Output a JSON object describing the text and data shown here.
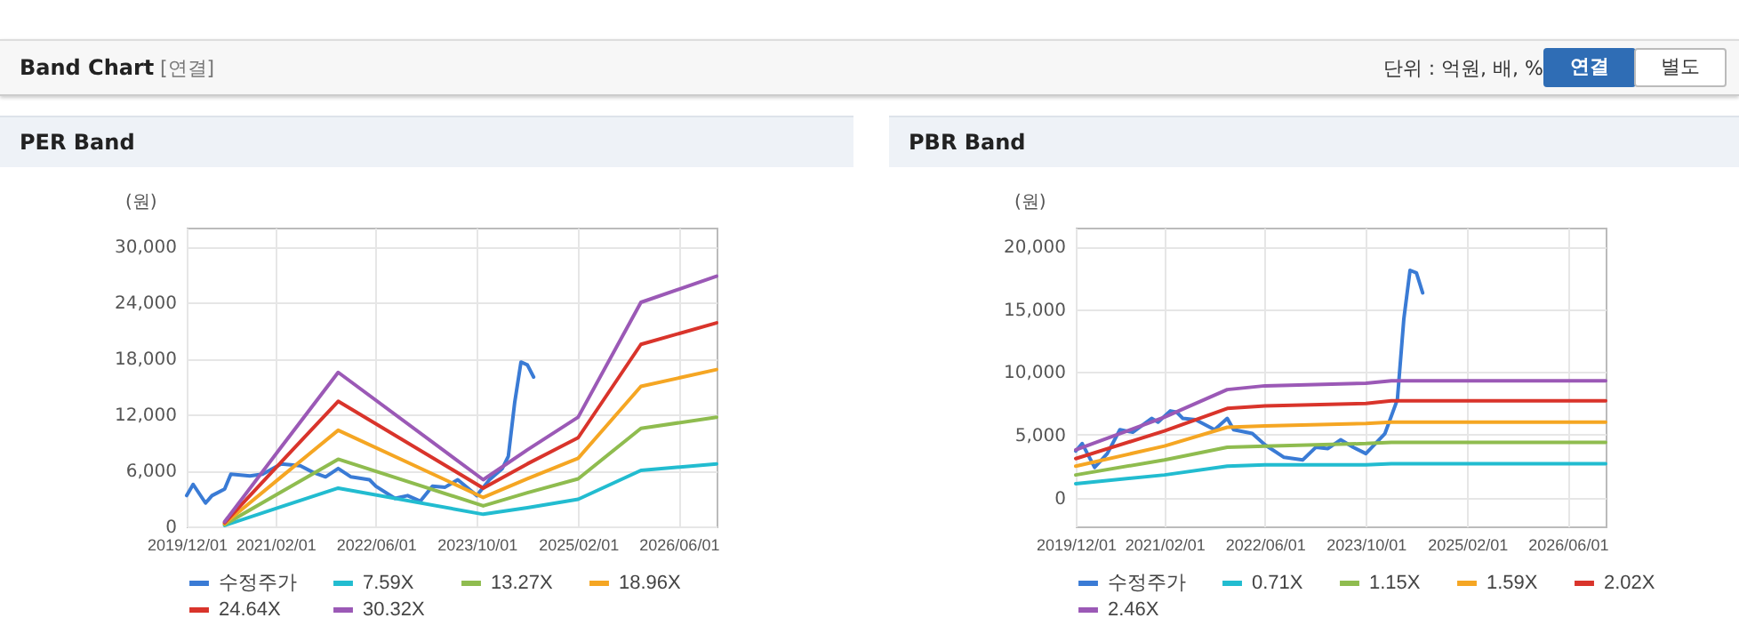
{
  "chart_data": [
    {
      "type": "line",
      "title": "PER Band",
      "ylabel": "(원)",
      "annotations": [
        "Band Chart",
        "[연결]",
        "단위 : 억원, 배, %",
        "연결",
        "별도"
      ],
      "xlim": [
        "2019-12-01",
        "2026-12-01"
      ],
      "xticks": [
        {
          "value": "2019-12-01",
          "label": "2019/12/01"
        },
        {
          "value": "2021-02-01",
          "label": "2021/02/01"
        },
        {
          "value": "2022-06-01",
          "label": "2022/06/01"
        },
        {
          "value": "2023-10-01",
          "label": "2023/10/01"
        },
        {
          "value": "2025-02-01",
          "label": "2025/02/01"
        },
        {
          "value": "2026-06-01",
          "label": "2026/06/01"
        }
      ],
      "ylim": [
        0,
        32000
      ],
      "yticks": [
        0,
        {
          "value": 6000,
          "label": "6,000"
        },
        {
          "value": 12000,
          "label": "12,000"
        },
        {
          "value": 18000,
          "label": "18,000"
        },
        {
          "value": 24000,
          "label": "24,000"
        },
        {
          "value": 30000,
          "label": "30,000"
        }
      ],
      "grid": true,
      "legend": "bottom",
      "series": [
        {
          "name": "수정주가",
          "color": "#3a7bd5",
          "x": [
            "2019-12",
            "2020-01",
            "2020-03",
            "2020-04",
            "2020-06",
            "2020-07",
            "2020-10",
            "2020-12",
            "2021-03",
            "2021-06",
            "2021-08",
            "2021-10",
            "2021-12",
            "2022-02",
            "2022-05",
            "2022-06",
            "2022-09",
            "2022-11",
            "2023-01",
            "2023-03",
            "2023-05",
            "2023-07",
            "2023-10",
            "2023-12",
            "2024-02",
            "2024-03",
            "2024-04",
            "2024-05",
            "2024-06",
            "2024-07"
          ],
          "values": [
            3300,
            4500,
            2500,
            3300,
            4000,
            5600,
            5400,
            5600,
            6700,
            6500,
            5800,
            5300,
            6200,
            5300,
            5000,
            4300,
            3000,
            3300,
            2700,
            4300,
            4200,
            5000,
            3300,
            5000,
            6200,
            7500,
            13300,
            17600,
            17300,
            16000
          ]
        },
        {
          "name": "7.59X",
          "color": "#22bcd0",
          "x": [
            "2020-06",
            "2021-03",
            "2021-12",
            "2023-11",
            "2024-06",
            "2025-02",
            "2025-12",
            "2026-12"
          ],
          "values": [
            100,
            2100,
            4100,
            1300,
            2000,
            2900,
            6000,
            6700
          ]
        },
        {
          "name": "13.27X",
          "color": "#8fbc4f",
          "x": [
            "2020-06",
            "2021-03",
            "2021-12",
            "2023-11",
            "2024-06",
            "2025-02",
            "2025-12",
            "2026-12"
          ],
          "values": [
            200,
            3700,
            7200,
            2200,
            3600,
            5100,
            10500,
            11700
          ]
        },
        {
          "name": "18.96X",
          "color": "#f5a623",
          "x": [
            "2020-06",
            "2021-03",
            "2021-12",
            "2023-11",
            "2024-06",
            "2025-02",
            "2025-12",
            "2026-12"
          ],
          "values": [
            300,
            5300,
            10300,
            3100,
            5100,
            7300,
            15000,
            16800
          ]
        },
        {
          "name": "24.64X",
          "color": "#d9342b",
          "x": [
            "2020-06",
            "2021-03",
            "2021-12",
            "2023-11",
            "2024-06",
            "2025-02",
            "2025-12",
            "2026-12"
          ],
          "values": [
            400,
            6900,
            13400,
            4100,
            6700,
            9500,
            19500,
            21800
          ]
        },
        {
          "name": "30.32X",
          "color": "#9b59b6",
          "x": [
            "2020-06",
            "2021-03",
            "2021-12",
            "2023-11",
            "2024-06",
            "2025-02",
            "2025-12",
            "2026-12"
          ],
          "values": [
            500,
            8500,
            16500,
            5000,
            8200,
            11700,
            24000,
            26800
          ]
        }
      ]
    },
    {
      "type": "line",
      "title": "PBR Band",
      "ylabel": "(원)",
      "xlim": [
        "2019-12-01",
        "2026-12-01"
      ],
      "xticks": [
        {
          "value": "2019-12-01",
          "label": "2019/12/01"
        },
        {
          "value": "2021-02-01",
          "label": "2021/02/01"
        },
        {
          "value": "2022-06-01",
          "label": "2022/06/01"
        },
        {
          "value": "2023-10-01",
          "label": "2023/10/01"
        },
        {
          "value": "2025-02-01",
          "label": "2025/02/01"
        },
        {
          "value": "2026-06-01",
          "label": "2026/06/01"
        }
      ],
      "ylim": [
        -2300,
        21500
      ],
      "yticks": [
        0,
        {
          "value": 5000,
          "label": "5,000"
        },
        {
          "value": 10000,
          "label": "10,000"
        },
        {
          "value": 15000,
          "label": "15,000"
        },
        {
          "value": 20000,
          "label": "20,000"
        }
      ],
      "grid": true,
      "legend": "bottom",
      "series": [
        {
          "name": "수정주가",
          "color": "#3a7bd5",
          "x": [
            "2019-12",
            "2020-01",
            "2020-03",
            "2020-05",
            "2020-07",
            "2020-09",
            "2020-12",
            "2021-01",
            "2021-03",
            "2021-04",
            "2021-05",
            "2021-07",
            "2021-10",
            "2021-12",
            "2022-01",
            "2022-04",
            "2022-06",
            "2022-09",
            "2022-12",
            "2023-02",
            "2023-04",
            "2023-06",
            "2023-08",
            "2023-10",
            "2024-01",
            "2024-03",
            "2024-04",
            "2024-05",
            "2024-06",
            "2024-07"
          ],
          "values": [
            3700,
            4300,
            2400,
            3500,
            5400,
            5200,
            6300,
            6000,
            6900,
            6800,
            6300,
            6200,
            5400,
            6300,
            5400,
            5100,
            4200,
            3200,
            3000,
            4000,
            3900,
            4600,
            4000,
            3500,
            5100,
            7800,
            14200,
            18100,
            17900,
            16300
          ]
        },
        {
          "name": "0.71X",
          "color": "#22bcd0",
          "x": [
            "2019-12",
            "2021-02",
            "2021-12",
            "2022-06",
            "2023-10",
            "2024-02",
            "2026-12"
          ],
          "values": [
            1100,
            1800,
            2500,
            2600,
            2600,
            2700,
            2700
          ]
        },
        {
          "name": "1.15X",
          "color": "#8fbc4f",
          "x": [
            "2019-12",
            "2021-02",
            "2021-12",
            "2022-06",
            "2023-10",
            "2024-02",
            "2026-12"
          ],
          "values": [
            1800,
            3000,
            4000,
            4100,
            4300,
            4400,
            4400
          ]
        },
        {
          "name": "1.59X",
          "color": "#f5a623",
          "x": [
            "2019-12",
            "2021-02",
            "2021-12",
            "2022-06",
            "2023-10",
            "2024-02",
            "2026-12"
          ],
          "values": [
            2500,
            4100,
            5600,
            5700,
            5900,
            6000,
            6000
          ]
        },
        {
          "name": "2.02X",
          "color": "#d9342b",
          "x": [
            "2019-12",
            "2021-02",
            "2021-12",
            "2022-06",
            "2023-10",
            "2024-02",
            "2026-12"
          ],
          "values": [
            3100,
            5300,
            7100,
            7300,
            7500,
            7700,
            7700
          ]
        },
        {
          "name": "2.46X",
          "color": "#9b59b6",
          "x": [
            "2019-12",
            "2021-02",
            "2021-12",
            "2022-06",
            "2023-10",
            "2024-02",
            "2026-12"
          ],
          "values": [
            3800,
            6400,
            8600,
            8900,
            9100,
            9300,
            9300
          ]
        }
      ]
    }
  ]
}
